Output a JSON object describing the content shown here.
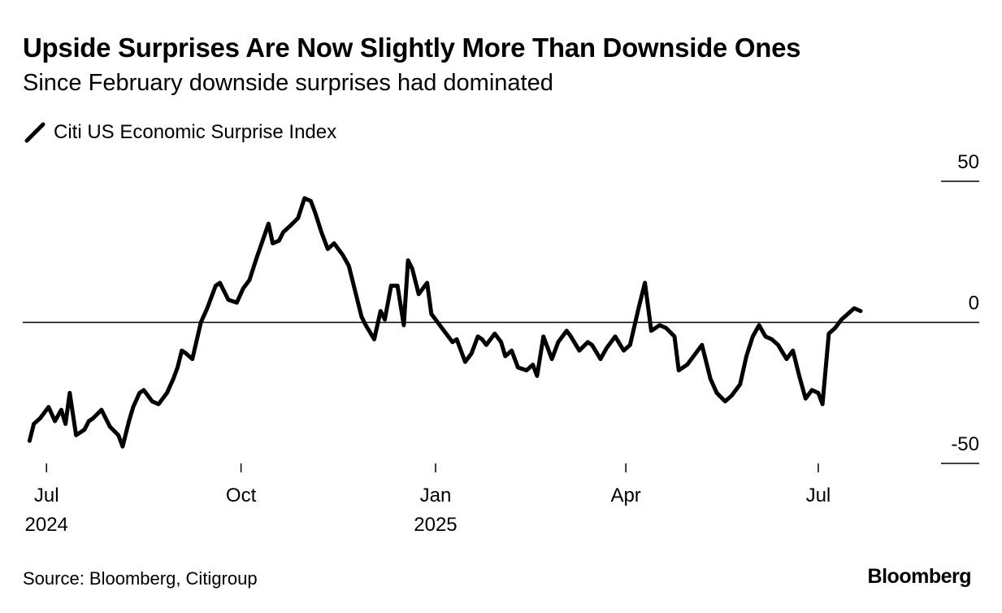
{
  "title": "Upside Surprises Are Now Slightly More Than Downside Ones",
  "subtitle": "Since February downside surprises had dominated",
  "source": "Source: Bloomberg, Citigroup",
  "brand": "Bloomberg",
  "colors": {
    "line": "#000000",
    "zero_line": "#000000",
    "background": "#ffffff"
  },
  "chart_data": {
    "type": "line",
    "title": "Upside Surprises Are Now Slightly More Than Downside Ones",
    "subtitle": "Since February downside surprises had dominated",
    "xlabel": "",
    "ylabel": "",
    "ylim": [
      -50,
      50
    ],
    "xlim": [
      "2024-06-24",
      "2025-08-10"
    ],
    "yticks": [
      50,
      0,
      -50
    ],
    "ytick_labels": [
      "50",
      "0",
      "-50"
    ],
    "y_axis_position": "right",
    "zero_line": true,
    "grid": false,
    "legend_placement": "top-left",
    "xticks": [
      {
        "date": "2024-07-01",
        "label": "Jul",
        "sublabel": "2024"
      },
      {
        "date": "2024-10-01",
        "label": "Oct",
        "sublabel": ""
      },
      {
        "date": "2025-01-01",
        "label": "Jan",
        "sublabel": "2025"
      },
      {
        "date": "2025-04-01",
        "label": "Apr",
        "sublabel": ""
      },
      {
        "date": "2025-07-01",
        "label": "Jul",
        "sublabel": ""
      }
    ],
    "series": [
      {
        "name": "Citi US Economic Surprise Index",
        "x": [
          "2024-06-23",
          "2024-06-25",
          "2024-06-28",
          "2024-07-02",
          "2024-07-05",
          "2024-07-08",
          "2024-07-10",
          "2024-07-12",
          "2024-07-15",
          "2024-07-19",
          "2024-07-21",
          "2024-07-23",
          "2024-07-27",
          "2024-07-31",
          "2024-08-04",
          "2024-08-06",
          "2024-08-09",
          "2024-08-11",
          "2024-08-14",
          "2024-08-16",
          "2024-08-20",
          "2024-08-23",
          "2024-08-27",
          "2024-08-30",
          "2024-09-01",
          "2024-09-03",
          "2024-09-05",
          "2024-09-08",
          "2024-09-12",
          "2024-09-15",
          "2024-09-19",
          "2024-09-21",
          "2024-09-25",
          "2024-09-29",
          "2024-10-02",
          "2024-10-05",
          "2024-10-08",
          "2024-10-14",
          "2024-10-16",
          "2024-10-19",
          "2024-10-21",
          "2024-10-24",
          "2024-10-28",
          "2024-10-31",
          "2024-11-03",
          "2024-11-05",
          "2024-11-08",
          "2024-11-11",
          "2024-11-14",
          "2024-11-18",
          "2024-11-21",
          "2024-11-24",
          "2024-11-27",
          "2024-11-29",
          "2024-12-03",
          "2024-12-06",
          "2024-12-08",
          "2024-12-11",
          "2024-12-14",
          "2024-12-17",
          "2024-12-19",
          "2024-12-21",
          "2024-12-24",
          "2024-12-28",
          "2024-12-30",
          "2025-01-03",
          "2025-01-06",
          "2025-01-09",
          "2025-01-11",
          "2025-01-15",
          "2025-01-18",
          "2025-01-21",
          "2025-01-23",
          "2025-01-25",
          "2025-01-29",
          "2025-02-01",
          "2025-02-03",
          "2025-02-06",
          "2025-02-09",
          "2025-02-13",
          "2025-02-16",
          "2025-02-18",
          "2025-02-21",
          "2025-02-25",
          "2025-02-28",
          "2025-03-04",
          "2025-03-06",
          "2025-03-10",
          "2025-03-14",
          "2025-03-16",
          "2025-03-20",
          "2025-03-23",
          "2025-03-27",
          "2025-03-31",
          "2025-04-03",
          "2025-04-07",
          "2025-04-10",
          "2025-04-13",
          "2025-04-17",
          "2025-04-20",
          "2025-04-24",
          "2025-04-26",
          "2025-04-30",
          "2025-05-04",
          "2025-05-07",
          "2025-05-11",
          "2025-05-14",
          "2025-05-18",
          "2025-05-21",
          "2025-05-25",
          "2025-05-28",
          "2025-05-31",
          "2025-06-03",
          "2025-06-06",
          "2025-06-09",
          "2025-06-12",
          "2025-06-16",
          "2025-06-19",
          "2025-06-22",
          "2025-06-25",
          "2025-06-28",
          "2025-07-01",
          "2025-07-03",
          "2025-07-06",
          "2025-07-09",
          "2025-07-12",
          "2025-07-15",
          "2025-07-18",
          "2025-07-21"
        ],
        "values": [
          -42,
          -36,
          -34,
          -30,
          -35,
          -31,
          -36,
          -25,
          -40,
          -38,
          -35,
          -34,
          -31,
          -37,
          -40,
          -44,
          -35,
          -30,
          -25,
          -24,
          -28,
          -29,
          -25,
          -20,
          -16,
          -10,
          -11,
          -13,
          0,
          5,
          13,
          14,
          8,
          7,
          12,
          15,
          22,
          35,
          28,
          29,
          32,
          34,
          37,
          44,
          43,
          39,
          32,
          26,
          28,
          24,
          20,
          11,
          2,
          -1,
          -6,
          4,
          1,
          13,
          13,
          -1,
          22,
          19,
          10,
          14,
          3,
          -1,
          -4,
          -7,
          -6,
          -14,
          -11,
          -5,
          -6,
          -8,
          -4,
          -7,
          -12,
          -10,
          -16,
          -17,
          -15,
          -19,
          -5,
          -13,
          -7,
          -3,
          -5,
          -10,
          -7,
          -8,
          -13,
          -9,
          -5,
          -10,
          -8,
          5,
          14,
          -3,
          -1,
          -2,
          -5,
          -17,
          -15,
          -11,
          -8,
          -20,
          -25,
          -28,
          -26,
          -22,
          -12,
          -5,
          -1,
          -5,
          -6,
          -8,
          -13,
          -10,
          -19,
          -27,
          -24,
          -25,
          -29,
          -4,
          -2,
          1,
          3,
          5,
          4
        ]
      }
    ]
  }
}
